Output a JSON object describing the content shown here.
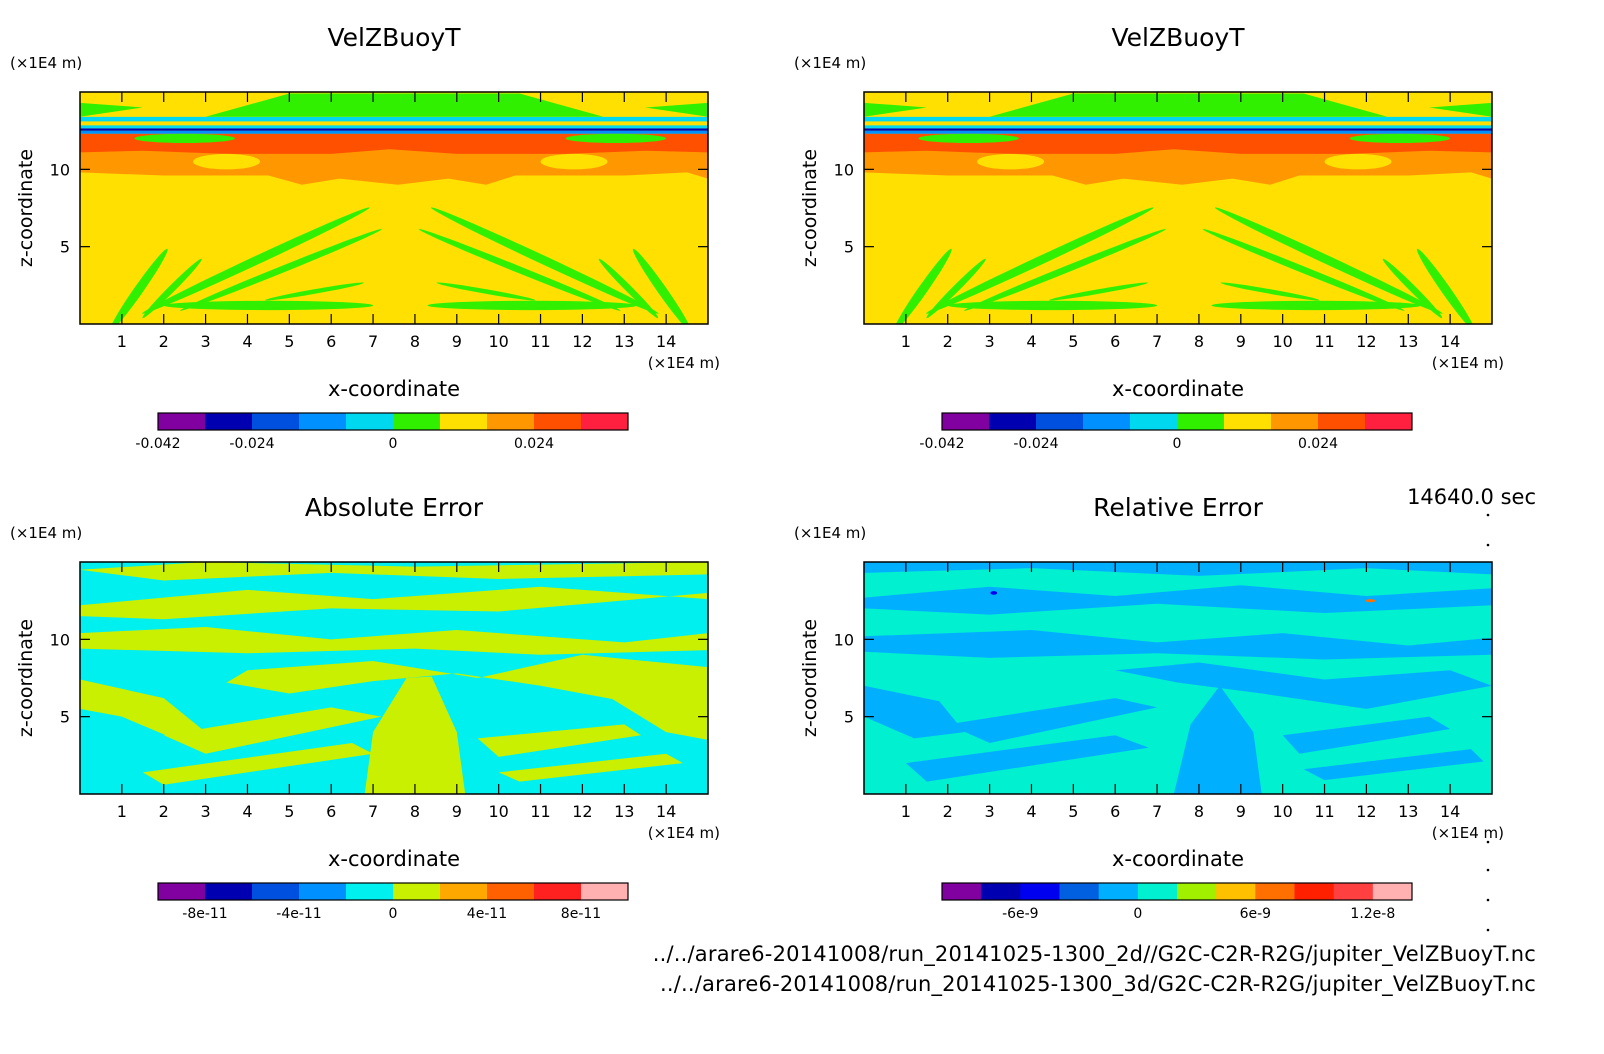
{
  "chart_data": [
    {
      "type": "heatmap",
      "title": "VelZBuoyT",
      "xlabel": "x-coordinate",
      "ylabel": "z-coordinate",
      "x_unit": "(×1E4 m)",
      "z_unit": "(×1E4 m)",
      "x_ticks": [
        1,
        2,
        3,
        4,
        5,
        6,
        7,
        8,
        9,
        10,
        11,
        12,
        13,
        14
      ],
      "z_ticks": [
        5,
        10
      ],
      "xlim": [
        0,
        15
      ],
      "zlim": [
        0,
        15
      ],
      "colorbar": {
        "colors": [
          "#8000a0",
          "#0000b0",
          "#0050e0",
          "#0090ff",
          "#00d8f0",
          "#30f000",
          "#ffe000",
          "#ff9800",
          "#ff5000",
          "#ff2040"
        ],
        "tick_labels": [
          "-0.042",
          "-0.024",
          "0",
          "0.024"
        ],
        "tick_positions": [
          0,
          2,
          5,
          8
        ]
      },
      "style": "velocity"
    },
    {
      "type": "heatmap",
      "title": "VelZBuoyT",
      "xlabel": "x-coordinate",
      "ylabel": "z-coordinate",
      "x_unit": "(×1E4 m)",
      "z_unit": "(×1E4 m)",
      "x_ticks": [
        1,
        2,
        3,
        4,
        5,
        6,
        7,
        8,
        9,
        10,
        11,
        12,
        13,
        14
      ],
      "z_ticks": [
        5,
        10
      ],
      "xlim": [
        0,
        15
      ],
      "zlim": [
        0,
        15
      ],
      "colorbar": {
        "colors": [
          "#8000a0",
          "#0000b0",
          "#0050e0",
          "#0090ff",
          "#00d8f0",
          "#30f000",
          "#ffe000",
          "#ff9800",
          "#ff5000",
          "#ff2040"
        ],
        "tick_labels": [
          "-0.042",
          "-0.024",
          "0",
          "0.024"
        ],
        "tick_positions": [
          0,
          2,
          5,
          8
        ]
      },
      "style": "velocity"
    },
    {
      "type": "heatmap",
      "title": "Absolute Error",
      "xlabel": "x-coordinate",
      "ylabel": "z-coordinate",
      "x_unit": "(×1E4 m)",
      "z_unit": "(×1E4 m)",
      "x_ticks": [
        1,
        2,
        3,
        4,
        5,
        6,
        7,
        8,
        9,
        10,
        11,
        12,
        13,
        14
      ],
      "z_ticks": [
        5,
        10
      ],
      "xlim": [
        0,
        15
      ],
      "zlim": [
        0,
        15
      ],
      "colorbar": {
        "colors": [
          "#8000a0",
          "#0000b0",
          "#0050e0",
          "#0090ff",
          "#00f0f0",
          "#c8f000",
          "#ffa800",
          "#ff6000",
          "#ff2020",
          "#ffb0b0"
        ],
        "tick_labels": [
          "-8e-11",
          "-4e-11",
          "0",
          "4e-11",
          "8e-11"
        ],
        "tick_positions": [
          1,
          3,
          5,
          7,
          9
        ]
      },
      "style": "abs"
    },
    {
      "type": "heatmap",
      "title": "Relative Error",
      "xlabel": "x-coordinate",
      "ylabel": "z-coordinate",
      "x_unit": "(×1E4 m)",
      "z_unit": "(×1E4 m)",
      "x_ticks": [
        1,
        2,
        3,
        4,
        5,
        6,
        7,
        8,
        9,
        10,
        11,
        12,
        13,
        14
      ],
      "z_ticks": [
        5,
        10
      ],
      "xlim": [
        0,
        15
      ],
      "zlim": [
        0,
        15
      ],
      "colorbar": {
        "colors": [
          "#8000a0",
          "#0000b0",
          "#0000f0",
          "#0060e0",
          "#00b0ff",
          "#00f0d0",
          "#a0f000",
          "#ffc000",
          "#ff7000",
          "#ff2000",
          "#ff4040",
          "#ffb0b0"
        ],
        "tick_labels": [
          "-6e-9",
          "0",
          "6e-9",
          "1.2e-8"
        ],
        "tick_positions": [
          2,
          5,
          8,
          11
        ]
      },
      "style": "rel"
    }
  ],
  "time_label": "14640.0 sec",
  "footer": {
    "line1": "../../arare6-20141008/run_20141025-1300_2d//G2C-C2R-R2G/jupiter_VelZBuoyT.nc",
    "line2": "../../arare6-20141008/run_20141025-1300_3d/G2C-C2R-R2G/jupiter_VelZBuoyT.nc"
  }
}
